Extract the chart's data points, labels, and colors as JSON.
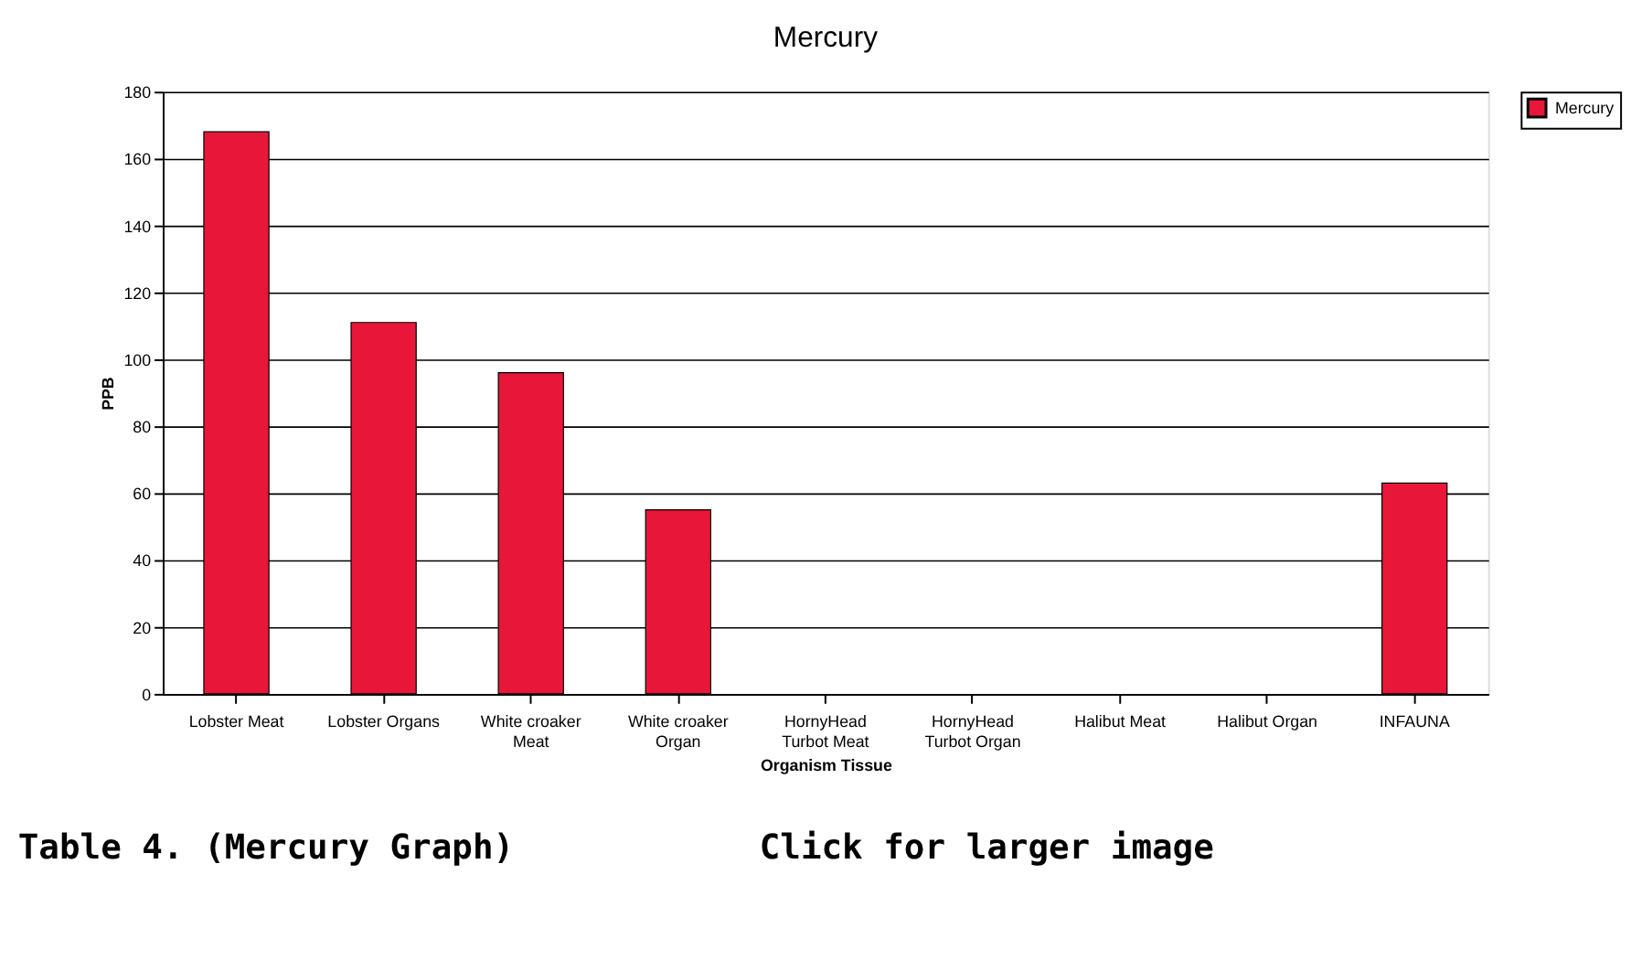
{
  "chart_data": {
    "type": "bar",
    "title": "Mercury",
    "xlabel": "Organism Tissue",
    "ylabel": "PPB",
    "categories": [
      "Lobster Meat",
      "Lobster Organs",
      "White croaker Meat",
      "White croaker Organ",
      "HornyHead Turbot Meat",
      "HornyHead Turbot Organ",
      "Halibut Meat",
      "Halibut Organ",
      "INFAUNA"
    ],
    "series": [
      {
        "name": "Mercury",
        "color": "#e8173a",
        "values": [
          168,
          111,
          96,
          55,
          null,
          null,
          null,
          null,
          63
        ]
      }
    ],
    "ylim": [
      0,
      180
    ],
    "yticks": [
      0,
      20,
      40,
      60,
      80,
      100,
      120,
      140,
      160,
      180
    ],
    "grid": "y",
    "legend": "right",
    "annotations": [
      "Table 4. (Mercury Graph)",
      "Click for larger image"
    ]
  }
}
